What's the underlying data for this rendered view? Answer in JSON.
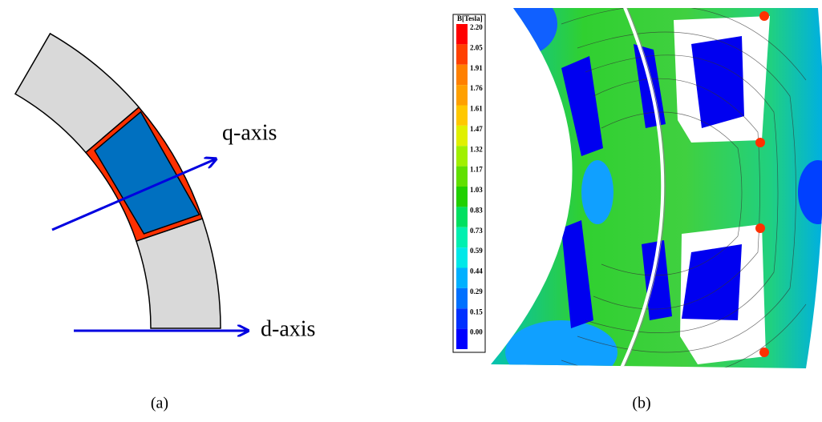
{
  "panel_a": {
    "q_axis_label": "q-axis",
    "d_axis_label": "d-axis",
    "caption": "(a)"
  },
  "panel_b": {
    "colorbar": {
      "title": "B[Tesla]",
      "labels": [
        "2.20",
        "2.05",
        "1.91",
        "1.76",
        "1.61",
        "1.47",
        "1.32",
        "1.17",
        "1.03",
        "0.83",
        "0.73",
        "0.59",
        "0.44",
        "0.29",
        "0.15",
        "0.00"
      ]
    },
    "caption": "(b)"
  }
}
